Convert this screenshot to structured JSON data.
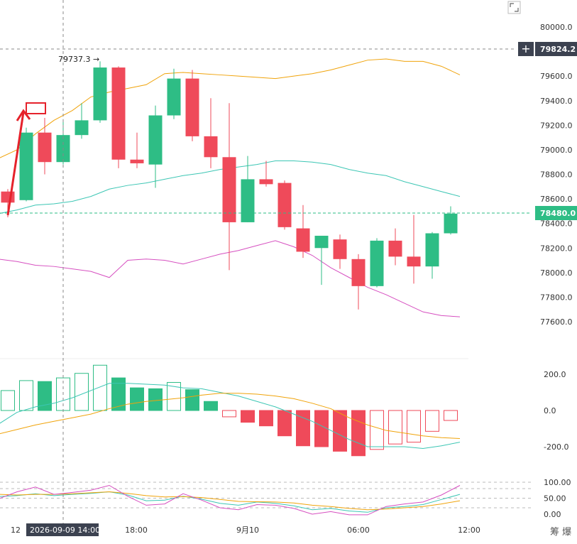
{
  "chart_data": {
    "type": "candlestick",
    "price_axis": {
      "ticks": [
        "80000.0",
        "79800.0",
        "79600.0",
        "79400.0",
        "79200.0",
        "79000.0",
        "78800.0",
        "78600.0",
        "78400.0",
        "78200.0",
        "78000.0",
        "77800.0",
        "77600.0"
      ],
      "range": [
        77450,
        80200
      ]
    },
    "time_axis": {
      "labels": [
        "12",
        "18:00",
        "9月10",
        "06:00",
        "12:00"
      ],
      "crosshair_label": "2026-09-09 14:00"
    },
    "current_price": "78480.0",
    "crosshair_price": "79824.2",
    "high_marker": "79737.3 →",
    "candles": [
      {
        "o": 78660,
        "h": 78680,
        "l": 78450,
        "c": 78570
      },
      {
        "o": 78590,
        "h": 79180,
        "l": 78580,
        "c": 79140
      },
      {
        "o": 79140,
        "h": 79260,
        "l": 78800,
        "c": 78900
      },
      {
        "o": 78900,
        "h": 79250,
        "l": 78880,
        "c": 79120
      },
      {
        "o": 79120,
        "h": 79380,
        "l": 79090,
        "c": 79240
      },
      {
        "o": 79240,
        "h": 79720,
        "l": 79220,
        "c": 79670
      },
      {
        "o": 79670,
        "h": 79680,
        "l": 78850,
        "c": 78920
      },
      {
        "o": 78920,
        "h": 79140,
        "l": 78850,
        "c": 78890
      },
      {
        "o": 78880,
        "h": 79360,
        "l": 78690,
        "c": 79280
      },
      {
        "o": 79280,
        "h": 79660,
        "l": 79250,
        "c": 79580
      },
      {
        "o": 79580,
        "h": 79650,
        "l": 79070,
        "c": 79110
      },
      {
        "o": 79110,
        "h": 79420,
        "l": 78850,
        "c": 78940
      },
      {
        "o": 78940,
        "h": 79380,
        "l": 78020,
        "c": 78410
      },
      {
        "o": 78410,
        "h": 78950,
        "l": 78410,
        "c": 78760
      },
      {
        "o": 78760,
        "h": 78910,
        "l": 78700,
        "c": 78720
      },
      {
        "o": 78730,
        "h": 78750,
        "l": 78350,
        "c": 78370
      },
      {
        "o": 78360,
        "h": 78550,
        "l": 78120,
        "c": 78170
      },
      {
        "o": 78200,
        "h": 78300,
        "l": 77900,
        "c": 78300
      },
      {
        "o": 78270,
        "h": 78310,
        "l": 78030,
        "c": 78110
      },
      {
        "o": 78110,
        "h": 78150,
        "l": 77700,
        "c": 77890
      },
      {
        "o": 77890,
        "h": 78280,
        "l": 77880,
        "c": 78260
      },
      {
        "o": 78260,
        "h": 78360,
        "l": 78060,
        "c": 78130
      },
      {
        "o": 78130,
        "h": 78470,
        "l": 77910,
        "c": 78050
      },
      {
        "o": 78050,
        "h": 78330,
        "l": 77950,
        "c": 78320
      },
      {
        "o": 78320,
        "h": 78540,
        "l": 78310,
        "c": 78480
      }
    ],
    "bollinger": {
      "upper": [
        78930,
        79000,
        79130,
        79240,
        79320,
        79430,
        79470,
        79500,
        79530,
        79620,
        79630,
        79620,
        79610,
        79600,
        79590,
        79580,
        79600,
        79620,
        79650,
        79690,
        79730,
        79740,
        79720,
        79720,
        79680,
        79610
      ],
      "middle": [
        78480,
        78510,
        78550,
        78560,
        78580,
        78620,
        78680,
        78710,
        78730,
        78760,
        78790,
        78810,
        78840,
        78860,
        78880,
        78910,
        78910,
        78900,
        78880,
        78840,
        78810,
        78790,
        78740,
        78700,
        78660,
        78620
      ],
      "lower": [
        78110,
        78090,
        78060,
        78050,
        78030,
        78010,
        77960,
        78100,
        78110,
        78100,
        78070,
        78110,
        78150,
        78180,
        78220,
        78260,
        78210,
        78140,
        78040,
        77960,
        77880,
        77820,
        77750,
        77680,
        77650,
        77640
      ]
    },
    "macd": {
      "ticks": [
        "200.0",
        "0.0",
        "-200.0"
      ],
      "range": [
        -270,
        270
      ],
      "histogram": [
        110,
        165,
        160,
        180,
        205,
        250,
        180,
        125,
        120,
        155,
        115,
        50,
        -35,
        -65,
        -85,
        -140,
        -195,
        -200,
        -225,
        -250,
        -215,
        -185,
        -175,
        -115,
        -55
      ],
      "dif": [
        -75,
        -10,
        20,
        40,
        70,
        110,
        150,
        150,
        145,
        140,
        125,
        120,
        100,
        80,
        50,
        20,
        -20,
        -60,
        -110,
        -160,
        -200,
        -200,
        -200,
        -210,
        -195,
        -175
      ],
      "dea": [
        -130,
        -105,
        -80,
        -60,
        -40,
        -20,
        10,
        35,
        50,
        60,
        70,
        85,
        95,
        95,
        90,
        80,
        65,
        40,
        10,
        -40,
        -80,
        -110,
        -125,
        -140,
        -150,
        -155
      ]
    },
    "kdj": {
      "ticks": [
        "100.00",
        "50.00",
        "0.00"
      ],
      "range": [
        -15,
        110
      ],
      "k": [
        55,
        58,
        64,
        58,
        62,
        65,
        70,
        60,
        42,
        44,
        56,
        47,
        34,
        28,
        38,
        34,
        26,
        14,
        18,
        10,
        6,
        20,
        24,
        30,
        46,
        62
      ],
      "d": [
        62,
        60,
        62,
        62,
        64,
        67,
        70,
        65,
        58,
        54,
        55,
        52,
        46,
        40,
        39,
        38,
        35,
        28,
        24,
        18,
        14,
        16,
        20,
        24,
        32,
        42
      ],
      "j": [
        48,
        70,
        85,
        62,
        68,
        75,
        90,
        56,
        28,
        32,
        64,
        44,
        20,
        14,
        30,
        28,
        18,
        0,
        8,
        -2,
        -2,
        24,
        32,
        38,
        60,
        90
      ]
    }
  },
  "colors": {
    "up": "#2ebd85",
    "down": "#ef4a5a",
    "boll_upper": "#f0a30a",
    "boll_middle": "#3cc6b4",
    "boll_lower": "#d64fc0",
    "badge_bg": "#3c4250",
    "current_badge": "#2ebd85",
    "annotation": "#e5222b"
  },
  "icons": {
    "corner": "expand-icon",
    "plus": "plus-icon"
  },
  "footer_icons": "筹 爆"
}
